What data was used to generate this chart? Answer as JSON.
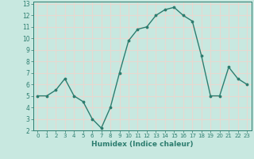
{
  "x": [
    0,
    1,
    2,
    3,
    4,
    5,
    6,
    7,
    8,
    9,
    10,
    11,
    12,
    13,
    14,
    15,
    16,
    17,
    18,
    19,
    20,
    21,
    22,
    23
  ],
  "y": [
    5.0,
    5.0,
    5.5,
    6.5,
    5.0,
    4.5,
    3.0,
    2.2,
    4.0,
    7.0,
    9.8,
    10.8,
    11.0,
    12.0,
    12.5,
    12.7,
    12.0,
    11.5,
    8.5,
    5.0,
    5.0,
    7.5,
    6.5,
    6.0
  ],
  "xlabel": "Humidex (Indice chaleur)",
  "xlim": [
    -0.5,
    23.5
  ],
  "ylim": [
    2,
    13.2
  ],
  "yticks": [
    2,
    3,
    4,
    5,
    6,
    7,
    8,
    9,
    10,
    11,
    12,
    13
  ],
  "xticks": [
    0,
    1,
    2,
    3,
    4,
    5,
    6,
    7,
    8,
    9,
    10,
    11,
    12,
    13,
    14,
    15,
    16,
    17,
    18,
    19,
    20,
    21,
    22,
    23
  ],
  "line_color": "#2d7d6f",
  "bg_color": "#c8e8e0",
  "grid_color": "#e8d8d0",
  "axis_color": "#2d7d6f"
}
